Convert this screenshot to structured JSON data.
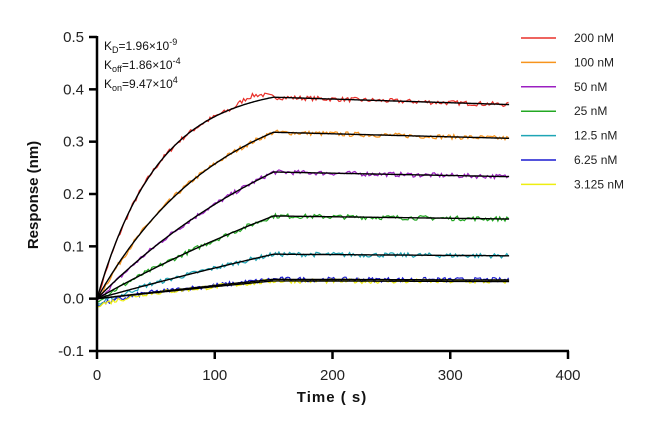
{
  "chart_data": {
    "type": "line",
    "title": "",
    "xlabel": "Time ( s)",
    "ylabel": "Response (nm)",
    "xlim": [
      0,
      400
    ],
    "ylim": [
      -0.1,
      0.5
    ],
    "xticks": [
      "0",
      "100",
      "200",
      "300",
      "400"
    ],
    "yticks": [
      "-0.1",
      "0.0",
      "0.1",
      "0.2",
      "0.3",
      "0.4",
      "0.5"
    ],
    "legend_position": "right",
    "association_end_s": 150,
    "experiment_end_s": 350,
    "kinetics": [
      {
        "sym": "K",
        "sub": "D",
        "val": "=1.96×10",
        "exp": "-9"
      },
      {
        "sym": "K",
        "sub": "off",
        "val": "=1.86×10",
        "exp": "-4"
      },
      {
        "sym": "K",
        "sub": "on",
        "val": "=9.47×10",
        "exp": "4"
      }
    ],
    "kon": 94700,
    "koff": 0.000186,
    "series": [
      {
        "name": "200 nM",
        "conc_nM": 200,
        "response_at_150s": 0.385,
        "color": "#e8302a"
      },
      {
        "name": "100 nM",
        "conc_nM": 100,
        "response_at_150s": 0.318,
        "color": "#f7941d"
      },
      {
        "name": "50 nM",
        "conc_nM": 50,
        "response_at_150s": 0.242,
        "color": "#9b1fc1"
      },
      {
        "name": "25 nM",
        "conc_nM": 25,
        "response_at_150s": 0.158,
        "color": "#23a823"
      },
      {
        "name": "12.5 nM",
        "conc_nM": 12.5,
        "response_at_150s": 0.085,
        "color": "#1ea5b5"
      },
      {
        "name": "6.25 nM",
        "conc_nM": 6.25,
        "response_at_150s": 0.037,
        "color": "#1a1ad0"
      },
      {
        "name": "3.125 nM",
        "conc_nM": 3.125,
        "response_at_150s": 0.034,
        "color": "#eeee10"
      }
    ]
  }
}
